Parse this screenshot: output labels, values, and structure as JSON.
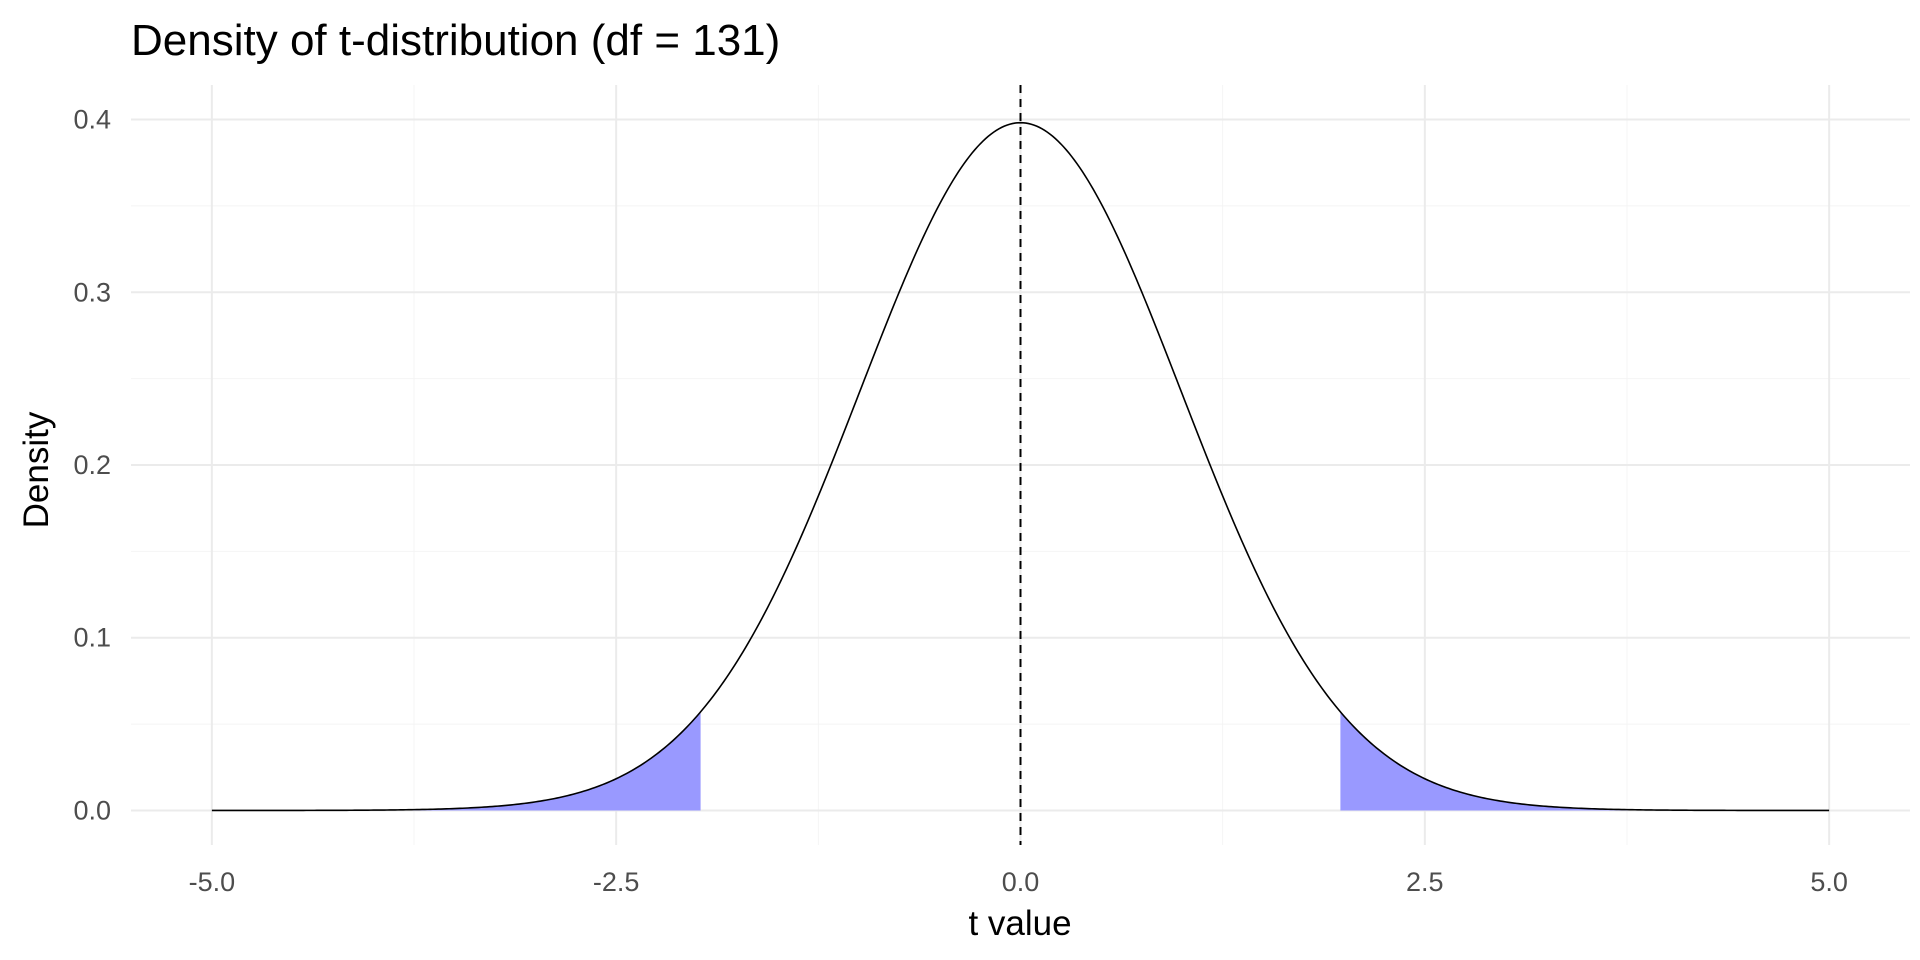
{
  "chart_data": {
    "type": "area",
    "title": "Density of t-distribution (df = 131)",
    "xlabel": "t value",
    "ylabel": "Density",
    "df": 131,
    "xlim": [
      -5.0,
      5.0
    ],
    "ylim": [
      0.0,
      0.4
    ],
    "x_ticks": [
      "-5.0",
      "-2.5",
      "0.0",
      "2.5",
      "5.0"
    ],
    "y_ticks": [
      "0.0",
      "0.1",
      "0.2",
      "0.3",
      "0.4"
    ],
    "critical_values": [
      -1.978,
      1.978
    ],
    "vline_x": 0.0,
    "grid": true,
    "legend": "none",
    "colors": {
      "curve": "#000000",
      "shade": "#9999ff",
      "grid": "#ebebeb",
      "vline": "#000000"
    }
  }
}
